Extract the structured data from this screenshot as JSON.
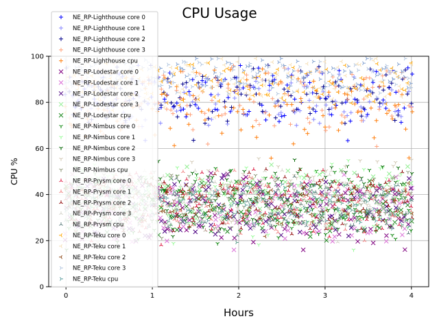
{
  "chart_data": {
    "type": "scatter",
    "title": "CPU Usage",
    "xlabel": "Hours",
    "ylabel": "CPU %",
    "xlim": [
      -0.2,
      4.2
    ],
    "ylim": [
      0,
      100
    ],
    "xticks": [
      "0",
      "1",
      "2",
      "3",
      "4"
    ],
    "yticks": [
      "0",
      "20",
      "40",
      "60",
      "80",
      "100"
    ],
    "grid": true,
    "legend_position": "upper-left",
    "series": [
      {
        "name": "NE_RP-Lighthouse core 0",
        "marker": "+",
        "color": "#0000ff",
        "band": [
          76,
          92
        ],
        "amplitude": 14
      },
      {
        "name": "NE_RP-Lighthouse core 1",
        "marker": "+",
        "color": "#8888ff",
        "band": [
          74,
          90
        ],
        "amplitude": 14
      },
      {
        "name": "NE_RP-Lighthouse core 2",
        "marker": "+",
        "color": "#00008b",
        "band": [
          76,
          92
        ],
        "amplitude": 14
      },
      {
        "name": "NE_RP-Lighthouse core 3",
        "marker": "+",
        "color": "#ffa07a",
        "band": [
          74,
          92
        ],
        "amplitude": 14
      },
      {
        "name": "NE_RP-Lighthouse cpu",
        "marker": "+",
        "color": "#ff7f0e",
        "band": [
          70,
          90
        ],
        "amplitude": 16
      },
      {
        "name": "NE_RP-Lodestar core 0",
        "marker": "x",
        "color": "#800080",
        "band": [
          24,
          44
        ],
        "amplitude": 8
      },
      {
        "name": "NE_RP-Lodestar core 1",
        "marker": "x",
        "color": "#da70d6",
        "band": [
          26,
          44
        ],
        "amplitude": 8
      },
      {
        "name": "NE_RP-Lodestar core 2",
        "marker": "x",
        "color": "#4b0082",
        "band": [
          26,
          44
        ],
        "amplitude": 8
      },
      {
        "name": "NE_RP-Lodestar core 3",
        "marker": "x",
        "color": "#90ee90",
        "band": [
          30,
          48
        ],
        "amplitude": 8
      },
      {
        "name": "NE_RP-Lodestar cpu",
        "marker": "x",
        "color": "#228b22",
        "band": [
          26,
          42
        ],
        "amplitude": 8
      },
      {
        "name": "NE_RP-Nimbus core 0",
        "marker": "1",
        "color": "#008000",
        "band": [
          26,
          46
        ],
        "amplitude": 20
      },
      {
        "name": "NE_RP-Nimbus core 1",
        "marker": "1",
        "color": "#98fb98",
        "band": [
          30,
          50
        ],
        "amplitude": 20
      },
      {
        "name": "NE_RP-Nimbus core 2",
        "marker": "1",
        "color": "#006400",
        "band": [
          30,
          50
        ],
        "amplitude": 20
      },
      {
        "name": "NE_RP-Nimbus core 3",
        "marker": "1",
        "color": "#d2c8b4",
        "band": [
          30,
          50
        ],
        "amplitude": 20
      },
      {
        "name": "NE_RP-Nimbus cpu",
        "marker": "1",
        "color": "#8f9779",
        "band": [
          30,
          46
        ],
        "amplitude": 14
      },
      {
        "name": "NE_RP-Prysm core 0",
        "marker": "2",
        "color": "#dc143c",
        "band": [
          28,
          46
        ],
        "amplitude": 8
      },
      {
        "name": "NE_RP-Prysm core 1",
        "marker": "2",
        "color": "#f08080",
        "band": [
          28,
          46
        ],
        "amplitude": 8
      },
      {
        "name": "NE_RP-Prysm core 2",
        "marker": "2",
        "color": "#8b0000",
        "band": [
          28,
          46
        ],
        "amplitude": 8
      },
      {
        "name": "NE_RP-Prysm core 3",
        "marker": "2",
        "color": "#d3d3c8",
        "band": [
          28,
          46
        ],
        "amplitude": 8
      },
      {
        "name": "NE_RP-Prysm cpu",
        "marker": "2",
        "color": "#5f7f7f",
        "band": [
          28,
          44
        ],
        "amplitude": 8
      },
      {
        "name": "NE_RP-Teku core 0",
        "marker": "3",
        "color": "#ffa500",
        "band": [
          82,
          94
        ],
        "amplitude": 8
      },
      {
        "name": "NE_RP-Teku core 1",
        "marker": "3",
        "color": "#f5deb3",
        "band": [
          84,
          96
        ],
        "amplitude": 8
      },
      {
        "name": "NE_RP-Teku core 2",
        "marker": "3",
        "color": "#8b4513",
        "band": [
          30,
          44
        ],
        "amplitude": 8
      },
      {
        "name": "NE_RP-Teku core 3",
        "marker": "4",
        "color": "#b0c4de",
        "band": [
          86,
          97
        ],
        "amplitude": 6
      },
      {
        "name": "NE_RP-Teku cpu",
        "marker": "4",
        "color": "#5f9ea0",
        "band": [
          30,
          42
        ],
        "amplitude": 8
      },
      {
        "name": "",
        "marker": "4",
        "color": "#7f9fcf",
        "band": [
          88,
          97
        ],
        "amplitude": 6,
        "legend": false
      },
      {
        "name": "",
        "marker": "4",
        "color": "#5f9f8f",
        "band": [
          30,
          42
        ],
        "amplitude": 8,
        "legend": false
      }
    ]
  }
}
